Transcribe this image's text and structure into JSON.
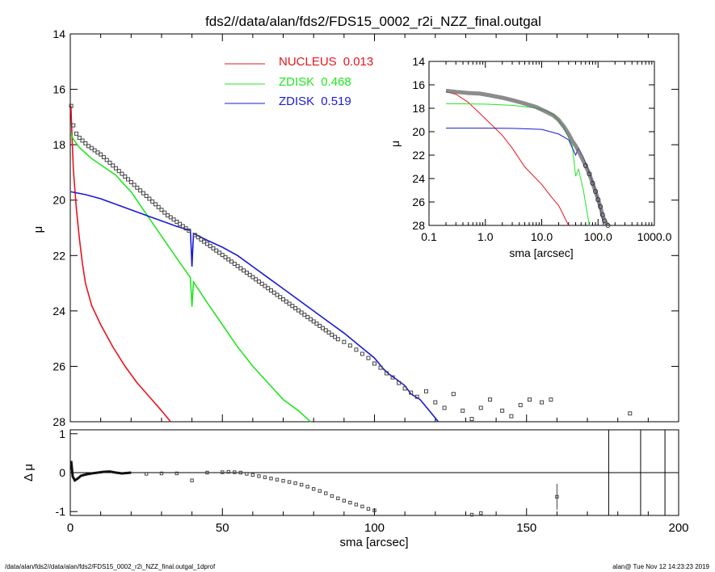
{
  "footer": {
    "path": "/data/alan/fds2//data/alan/fds2/FDS15_0002_r2i_NZZ_final.outgal_1dprof",
    "user_time": "alan@  Tue Nov 12 14:23:23 2019"
  },
  "colors": {
    "nucleus": "#e8141e",
    "zdisk1": "#22e622",
    "zdisk2": "#1a1ad8",
    "data": "#444444",
    "axes": "#000000"
  },
  "chart_data": [
    {
      "type": "scatter",
      "title": "fds2//data/alan/fds2/FDS15_0002_r2i_NZZ_final.outgal",
      "xlabel": "",
      "ylabel": "μ",
      "xlim": [
        0,
        200
      ],
      "ylim": [
        28,
        14
      ],
      "yticks": [
        14,
        16,
        18,
        20,
        22,
        24,
        26,
        28
      ],
      "legend": {
        "placement": "top-center",
        "entries": [
          {
            "name": "NUCLEUS",
            "value": "0.013",
            "color": "#e8141e"
          },
          {
            "name": "ZDISK",
            "value": "0.468",
            "color": "#22e622"
          },
          {
            "name": "ZDISK",
            "value": "0.519",
            "color": "#1a1ad8"
          }
        ]
      },
      "series": [
        {
          "name": "NUCLEUS",
          "x": [
            0.2,
            0.5,
            1,
            2,
            3,
            4,
            5,
            7,
            10,
            14,
            18,
            22,
            26,
            30,
            33
          ],
          "y": [
            16.6,
            17.5,
            18.9,
            20.3,
            21.4,
            22.3,
            23.0,
            23.8,
            24.5,
            25.3,
            26.0,
            26.6,
            27.1,
            27.6,
            28.0
          ]
        },
        {
          "name": "ZDISK",
          "x": [
            0.2,
            1,
            3,
            5,
            7,
            9,
            11,
            13,
            15,
            17,
            20,
            25,
            30,
            35,
            39.5,
            40,
            40.5,
            45,
            50,
            55,
            60,
            65,
            70,
            75,
            79
          ],
          "y": [
            17.6,
            17.8,
            18.1,
            18.3,
            18.5,
            18.65,
            18.8,
            18.95,
            19.1,
            19.35,
            19.7,
            20.5,
            21.3,
            22.1,
            22.8,
            23.85,
            22.95,
            23.7,
            24.5,
            25.3,
            26.0,
            26.6,
            27.2,
            27.6,
            28.0
          ]
        },
        {
          "name": "ZDISK",
          "x": [
            0.2,
            5,
            10,
            15,
            20,
            25,
            30,
            35,
            39.5,
            40,
            40.5,
            45,
            50,
            55,
            60,
            65,
            70,
            75,
            80,
            85,
            90,
            95,
            100,
            103,
            105,
            107,
            110,
            112,
            115,
            118,
            121
          ],
          "y": [
            19.7,
            19.8,
            19.95,
            20.15,
            20.35,
            20.55,
            20.75,
            20.95,
            21.1,
            22.4,
            21.2,
            21.45,
            21.7,
            22.0,
            22.4,
            22.8,
            23.2,
            23.6,
            24.0,
            24.4,
            24.8,
            25.25,
            25.7,
            26.1,
            26.3,
            26.45,
            26.7,
            27.0,
            27.2,
            27.6,
            28.0
          ]
        },
        {
          "name": "data",
          "x": [
            0.3,
            1,
            2,
            3,
            4,
            5,
            6,
            7,
            8,
            9,
            10,
            11,
            12,
            13,
            14,
            15,
            16,
            17,
            18,
            19,
            20,
            21,
            22,
            23,
            24,
            25,
            26,
            27,
            28,
            29,
            30,
            31,
            32,
            33,
            34,
            35,
            36,
            37,
            38,
            39,
            41,
            42,
            43,
            44,
            45,
            46,
            47,
            48,
            49,
            50,
            51,
            52,
            53,
            54,
            55,
            56,
            57,
            58,
            59,
            60,
            61,
            62,
            63,
            64,
            65,
            66,
            67,
            68,
            69,
            70,
            71,
            72,
            73,
            74,
            75,
            76,
            77,
            78,
            79,
            80,
            81,
            82,
            83,
            84,
            85,
            86,
            87,
            88,
            90,
            92,
            94,
            96,
            98,
            100,
            102,
            104,
            106,
            108,
            110,
            112,
            114,
            117,
            120,
            123,
            126,
            129,
            132,
            135,
            138,
            142,
            145,
            148,
            151,
            155,
            158,
            184
          ],
          "y": [
            16.6,
            17.3,
            17.6,
            17.75,
            17.85,
            17.95,
            18.05,
            18.12,
            18.2,
            18.28,
            18.35,
            18.45,
            18.55,
            18.65,
            18.75,
            18.85,
            18.95,
            19.05,
            19.15,
            19.25,
            19.35,
            19.45,
            19.55,
            19.65,
            19.75,
            19.85,
            19.95,
            20.05,
            20.15,
            20.25,
            20.35,
            20.45,
            20.55,
            20.62,
            20.7,
            20.78,
            20.86,
            20.94,
            21.02,
            21.1,
            21.26,
            21.34,
            21.42,
            21.5,
            21.58,
            21.66,
            21.74,
            21.82,
            21.9,
            21.98,
            22.06,
            22.14,
            22.22,
            22.3,
            22.38,
            22.46,
            22.54,
            22.62,
            22.7,
            22.78,
            22.86,
            22.94,
            23.02,
            23.1,
            23.18,
            23.26,
            23.34,
            23.42,
            23.5,
            23.58,
            23.66,
            23.74,
            23.82,
            23.9,
            23.98,
            24.06,
            24.14,
            24.22,
            24.3,
            24.38,
            24.46,
            24.54,
            24.62,
            24.7,
            24.78,
            24.86,
            24.94,
            25.02,
            25.12,
            25.25,
            25.4,
            25.55,
            25.7,
            25.9,
            26.05,
            26.25,
            26.4,
            26.6,
            26.8,
            26.95,
            27.1,
            26.9,
            27.3,
            27.5,
            27.0,
            27.6,
            27.9,
            27.5,
            27.2,
            27.6,
            27.8,
            27.4,
            27.2,
            27.3,
            27.2,
            27.7
          ]
        }
      ]
    },
    {
      "type": "scatter",
      "title": "",
      "xlabel": "sma [arcsec]",
      "ylabel": "μ",
      "xscale": "log",
      "xlim": [
        0.1,
        1000.0
      ],
      "ylim": [
        28,
        14
      ],
      "xticks": [
        "0.1",
        "1.0",
        "10.0",
        "100.0",
        "1000.0"
      ],
      "yticks": [
        14,
        16,
        18,
        20,
        22,
        24,
        26,
        28
      ],
      "series": [
        {
          "name": "NUCLEUS",
          "x": [
            0.2,
            0.3,
            0.5,
            1,
            2,
            3,
            5,
            10,
            15,
            20,
            30
          ],
          "y": [
            16.6,
            16.8,
            17.5,
            18.9,
            20.3,
            21.4,
            23.0,
            24.5,
            25.6,
            26.3,
            28.0
          ]
        },
        {
          "name": "ZDISK",
          "x": [
            0.2,
            1,
            3,
            7,
            12,
            17,
            25,
            35,
            40,
            45,
            55,
            70
          ],
          "y": [
            17.6,
            17.65,
            17.75,
            17.95,
            18.2,
            18.6,
            19.7,
            21.2,
            23.8,
            23.2,
            25.0,
            28.0
          ]
        },
        {
          "name": "ZDISK",
          "x": [
            0.2,
            1,
            3,
            10,
            20,
            30,
            40,
            45,
            55,
            70,
            90,
            110,
            125
          ],
          "y": [
            19.7,
            19.7,
            19.72,
            19.8,
            20.2,
            20.7,
            22.0,
            21.4,
            22.2,
            23.5,
            25.0,
            26.6,
            28.0
          ]
        },
        {
          "name": "data",
          "x": [
            0.2,
            0.3,
            0.5,
            0.8,
            1.2,
            2,
            3,
            5,
            8,
            12,
            16,
            20,
            25,
            30,
            35,
            40,
            50,
            60,
            70,
            80,
            90,
            100,
            110,
            120,
            130,
            150
          ],
          "y": [
            16.5,
            16.6,
            16.7,
            16.75,
            16.9,
            17.1,
            17.3,
            17.6,
            17.9,
            18.3,
            18.6,
            19.0,
            19.6,
            20.2,
            20.8,
            21.2,
            22.1,
            22.9,
            23.6,
            24.4,
            25.1,
            25.8,
            26.4,
            27.1,
            27.6,
            28.0
          ]
        }
      ]
    },
    {
      "type": "scatter",
      "title": "",
      "xlabel": "sma [arcsec]",
      "ylabel": "Δ μ",
      "xlim": [
        0,
        200
      ],
      "ylim": [
        -1.1,
        1.1
      ],
      "xticks": [
        0,
        50,
        100,
        150,
        200
      ],
      "yticks": [
        1,
        0,
        -1
      ],
      "vlines": [
        177,
        187.5,
        195.5
      ],
      "series": [
        {
          "name": "residual",
          "x": [
            0.3,
            0.8,
            1.5,
            2.5,
            3.5,
            5,
            7,
            9,
            11,
            13,
            15,
            17,
            20,
            25,
            30,
            35,
            40,
            45,
            50,
            52,
            54,
            56,
            58,
            60,
            62,
            64,
            66,
            68,
            70,
            72,
            74,
            76,
            78,
            80,
            82,
            84,
            86,
            88,
            90,
            92,
            94,
            96,
            98,
            100,
            132,
            135,
            160
          ],
          "y": [
            0.3,
            -0.1,
            -0.2,
            -0.15,
            -0.08,
            -0.05,
            -0.02,
            0.0,
            0.02,
            0.03,
            0.0,
            -0.02,
            0.0,
            -0.03,
            -0.02,
            -0.02,
            -0.2,
            0.0,
            0.01,
            0.02,
            0.01,
            0.0,
            -0.03,
            -0.06,
            -0.09,
            -0.12,
            -0.15,
            -0.18,
            -0.21,
            -0.24,
            -0.27,
            -0.31,
            -0.36,
            -0.42,
            -0.47,
            -0.53,
            -0.6,
            -0.66,
            -0.72,
            -0.77,
            -0.82,
            -0.87,
            -0.93,
            -0.97,
            -1.08,
            -1.04,
            -0.62
          ]
        }
      ]
    }
  ]
}
